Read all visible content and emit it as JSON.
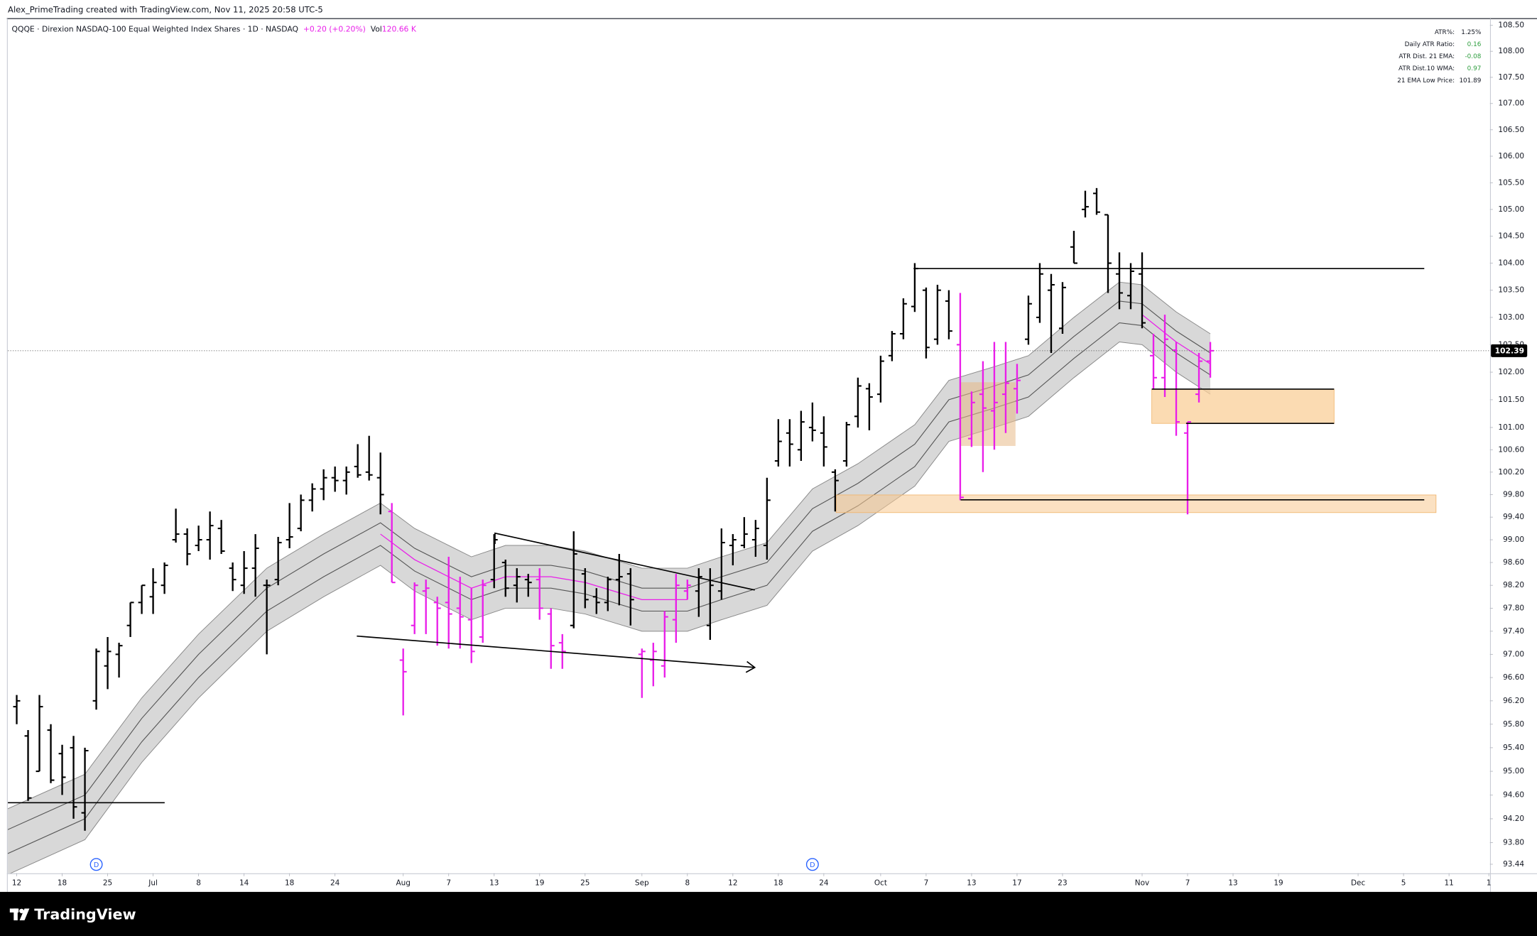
{
  "header": "Alex_PrimeTrading created with TradingView.com, Nov 11, 2025 20:58 UTC-5",
  "legend": {
    "symbol": "QQQE · Direxion NASDAQ-100 Equal Weighted Index Shares · 1D · NASDAQ",
    "change": "+0.20 (+0.20%)",
    "volume_label": "Vol",
    "volume": "120.66 K"
  },
  "stats": {
    "rows": [
      [
        "ATR%:",
        "1.25%"
      ],
      [
        "Daily ATR Ratio:",
        "0.16"
      ],
      [
        "ATR Dist. 21 EMA:",
        "-0.08"
      ],
      [
        "ATR Dist.10 WMA:",
        "0.97"
      ],
      [
        "21 EMA Low Price:",
        "101.89"
      ]
    ],
    "value_colors": [
      "#131722",
      "#2e9e3e",
      "#2e9e3e",
      "#2e9e3e",
      "#131722"
    ]
  },
  "footer": "TradingView",
  "chart_data": {
    "type": "ohlc",
    "log_scale": true,
    "grid": false,
    "open": [
      96.1,
      95.6,
      95.0,
      95.7,
      95.3,
      95.4,
      94.3,
      96.2,
      96.8,
      97.0,
      97.5,
      97.9,
      98.0,
      98.2,
      99.0,
      99.1,
      98.9,
      99.0,
      99.2,
      98.5,
      98.2,
      98.5,
      98.2,
      98.3,
      99.0,
      99.2,
      99.7,
      99.9,
      100.1,
      100.05,
      100.3,
      100.2,
      100.1,
      99.5,
      96.9,
      97.5,
      98.1,
      97.9,
      97.9,
      97.8,
      97.6,
      97.3,
      98.3,
      98.6,
      98.2,
      98.3,
      98.3,
      97.7,
      97.2,
      97.5,
      98.4,
      98.0,
      97.9,
      98.3,
      98.4,
      97.0,
      96.9,
      96.8,
      97.6,
      98.1,
      98.1,
      97.5,
      98.1,
      98.9,
      98.9,
      99.0,
      98.9,
      100.4,
      100.9,
      100.6,
      101.0,
      100.9,
      100.2,
      100.4,
      101.2,
      101.7,
      101.6,
      102.3,
      102.7,
      103.2,
      103.5,
      102.6,
      103.3,
      102.5,
      100.8,
      101.6,
      101.3,
      101.6,
      101.7,
      102.6,
      103.0,
      103.5,
      102.8,
      104.3,
      105.0,
      105.3,
      104.9,
      103.8,
      103.4,
      103.8,
      102.3,
      101.9,
      102.4,
      100.9,
      101.6,
      102.2
    ],
    "high": [
      96.3,
      95.7,
      96.3,
      95.8,
      95.45,
      95.6,
      95.4,
      97.1,
      97.3,
      97.2,
      97.9,
      98.2,
      98.5,
      98.6,
      99.55,
      99.2,
      99.25,
      99.5,
      99.35,
      98.6,
      98.8,
      99.1,
      98.3,
      99.05,
      99.65,
      99.8,
      100.0,
      100.25,
      100.3,
      100.3,
      100.7,
      100.85,
      100.55,
      99.65,
      97.1,
      98.25,
      98.3,
      98.0,
      98.7,
      98.35,
      98.15,
      98.3,
      99.1,
      98.65,
      98.5,
      98.4,
      98.5,
      97.8,
      97.35,
      99.15,
      98.5,
      98.15,
      98.35,
      98.75,
      98.5,
      97.1,
      97.2,
      97.75,
      98.4,
      98.3,
      98.5,
      98.5,
      99.2,
      99.1,
      99.4,
      99.35,
      100.1,
      101.15,
      101.15,
      101.3,
      101.45,
      101.2,
      100.25,
      101.1,
      101.9,
      101.8,
      102.3,
      102.75,
      103.35,
      104.0,
      103.55,
      103.6,
      103.5,
      103.45,
      101.65,
      102.2,
      102.55,
      102.55,
      102.15,
      103.4,
      104.0,
      103.8,
      103.65,
      104.6,
      105.35,
      105.4,
      104.9,
      104.2,
      104.0,
      104.2,
      102.7,
      103.05,
      102.55,
      101.1,
      102.35,
      102.55
    ],
    "low": [
      95.8,
      94.5,
      95.0,
      94.8,
      94.6,
      94.2,
      94.0,
      96.05,
      96.4,
      96.6,
      97.3,
      97.7,
      97.7,
      98.05,
      98.95,
      98.55,
      98.8,
      98.65,
      98.75,
      98.1,
      98.05,
      98.0,
      97.0,
      98.2,
      98.85,
      99.15,
      99.5,
      99.7,
      99.85,
      99.8,
      100.1,
      100.05,
      99.45,
      98.25,
      95.95,
      97.35,
      97.35,
      97.15,
      97.1,
      97.1,
      96.85,
      97.2,
      98.15,
      98.0,
      97.9,
      98.0,
      97.6,
      96.75,
      96.75,
      97.45,
      97.8,
      97.7,
      97.75,
      97.85,
      97.5,
      96.25,
      96.45,
      96.6,
      97.2,
      97.95,
      97.65,
      97.25,
      97.95,
      98.55,
      98.85,
      98.7,
      98.65,
      100.3,
      100.3,
      100.4,
      100.75,
      100.3,
      99.5,
      100.3,
      101.0,
      100.95,
      101.45,
      102.2,
      102.6,
      103.1,
      102.25,
      102.5,
      102.6,
      99.7,
      100.65,
      100.2,
      100.6,
      100.9,
      101.25,
      102.5,
      102.9,
      102.35,
      102.7,
      104.0,
      104.85,
      104.9,
      103.45,
      103.15,
      103.15,
      102.8,
      101.7,
      101.55,
      100.85,
      99.45,
      101.45,
      101.9
    ],
    "close": [
      96.2,
      94.55,
      96.1,
      94.85,
      94.9,
      94.4,
      95.35,
      97.05,
      97.05,
      97.15,
      97.9,
      98.2,
      98.25,
      98.55,
      99.1,
      98.75,
      99.0,
      99.25,
      98.8,
      98.3,
      98.5,
      98.85,
      98.2,
      98.95,
      99.05,
      99.7,
      99.9,
      100.1,
      100.05,
      100.2,
      100.15,
      100.15,
      99.8,
      98.25,
      96.7,
      98.2,
      98.15,
      97.8,
      97.7,
      97.65,
      97.05,
      98.2,
      99.0,
      98.15,
      98.35,
      98.25,
      97.8,
      97.15,
      97.05,
      98.75,
      97.95,
      97.9,
      98.3,
      98.35,
      97.95,
      97.05,
      97.05,
      97.65,
      98.2,
      98.2,
      98.35,
      98.2,
      98.95,
      99.0,
      99.1,
      99.2,
      99.7,
      100.75,
      100.7,
      101.1,
      100.95,
      100.65,
      100.05,
      101.05,
      101.75,
      101.55,
      102.2,
      102.7,
      103.25,
      103.9,
      102.45,
      103.5,
      102.75,
      99.75,
      101.45,
      101.35,
      101.45,
      101.8,
      101.85,
      103.25,
      103.8,
      103.6,
      103.55,
      104.0,
      105.05,
      104.95,
      104.0,
      103.45,
      103.85,
      102.9,
      101.9,
      102.6,
      101.1,
      101.1,
      102.2,
      102.39
    ],
    "bar_colors": [
      "#000000",
      "#000000",
      "#000000",
      "#000000",
      "#000000",
      "#000000",
      "#000000",
      "#000000",
      "#000000",
      "#000000",
      "#000000",
      "#000000",
      "#000000",
      "#000000",
      "#000000",
      "#000000",
      "#000000",
      "#000000",
      "#000000",
      "#000000",
      "#000000",
      "#000000",
      "#000000",
      "#000000",
      "#000000",
      "#000000",
      "#000000",
      "#000000",
      "#000000",
      "#000000",
      "#000000",
      "#000000",
      "#000000",
      "#e91ee9",
      "#e91ee9",
      "#e91ee9",
      "#e91ee9",
      "#e91ee9",
      "#e91ee9",
      "#e91ee9",
      "#e91ee9",
      "#e91ee9",
      "#000000",
      "#000000",
      "#000000",
      "#000000",
      "#e91ee9",
      "#e91ee9",
      "#e91ee9",
      "#000000",
      "#000000",
      "#000000",
      "#000000",
      "#000000",
      "#000000",
      "#e91ee9",
      "#e91ee9",
      "#e91ee9",
      "#e91ee9",
      "#e91ee9",
      "#000000",
      "#000000",
      "#000000",
      "#000000",
      "#000000",
      "#000000",
      "#000000",
      "#000000",
      "#000000",
      "#000000",
      "#000000",
      "#000000",
      "#000000",
      "#000000",
      "#000000",
      "#000000",
      "#000000",
      "#000000",
      "#000000",
      "#000000",
      "#000000",
      "#000000",
      "#000000",
      "#e91ee9",
      "#e91ee9",
      "#e91ee9",
      "#e91ee9",
      "#e91ee9",
      "#e91ee9",
      "#000000",
      "#000000",
      "#000000",
      "#000000",
      "#000000",
      "#000000",
      "#000000",
      "#000000",
      "#000000",
      "#000000",
      "#000000",
      "#e91ee9",
      "#e91ee9",
      "#e91ee9",
      "#e91ee9",
      "#e91ee9",
      "#e91ee9"
    ],
    "indicator": {
      "band_color": "#d4d4d4",
      "edge_color": "#8a8a8a",
      "inner_color": "#555555",
      "ema_color": "#e91ee9",
      "x": [
        -1,
        6,
        11,
        16,
        22,
        27,
        32,
        35,
        40,
        43,
        47,
        50,
        55,
        59,
        62,
        66,
        70,
        74,
        79,
        82,
        86,
        89,
        93,
        97,
        99,
        102,
        105
      ],
      "upper": [
        94.35,
        94.95,
        96.25,
        97.35,
        98.5,
        99.1,
        99.65,
        99.2,
        98.7,
        98.9,
        98.9,
        98.8,
        98.5,
        98.5,
        98.7,
        98.95,
        99.9,
        100.35,
        101.05,
        101.85,
        102.1,
        102.3,
        103.0,
        103.65,
        103.6,
        103.1,
        102.7
      ],
      "lower": [
        93.25,
        93.85,
        95.15,
        96.25,
        97.4,
        98.0,
        98.55,
        98.1,
        97.6,
        97.8,
        97.8,
        97.7,
        97.4,
        97.4,
        97.6,
        97.85,
        98.8,
        99.25,
        99.95,
        100.75,
        101.0,
        101.2,
        101.9,
        102.55,
        102.5,
        102.0,
        101.6
      ],
      "inner_upper": [
        94.0,
        94.6,
        95.9,
        97.0,
        98.15,
        98.75,
        99.3,
        98.85,
        98.35,
        98.55,
        98.55,
        98.45,
        98.15,
        98.15,
        98.35,
        98.6,
        99.55,
        100.0,
        100.7,
        101.5,
        101.75,
        101.95,
        102.65,
        103.3,
        103.25,
        102.75,
        102.35
      ],
      "inner_lower": [
        93.6,
        94.2,
        95.5,
        96.6,
        97.75,
        98.35,
        98.9,
        98.45,
        97.95,
        98.15,
        98.15,
        98.05,
        97.75,
        97.75,
        97.95,
        98.2,
        99.15,
        99.6,
        100.3,
        101.1,
        101.35,
        101.55,
        102.25,
        102.9,
        102.85,
        102.35,
        101.95
      ],
      "ema": [
        null,
        null,
        null,
        null,
        null,
        null,
        99.1,
        98.65,
        98.15,
        98.35,
        98.35,
        98.25,
        97.95,
        97.95,
        null,
        null,
        null,
        null,
        null,
        null,
        null,
        null,
        null,
        null,
        103.05,
        102.55,
        102.15
      ]
    },
    "last_price": 102.39,
    "events": [
      {
        "x": 7,
        "label": "D"
      },
      {
        "x": 70,
        "label": "D"
      }
    ],
    "ylim": [
      93.29,
      108.63
    ],
    "yticks": [
      {
        "value": 108.5,
        "label": "108.50"
      },
      {
        "value": 108,
        "label": "108.00"
      },
      {
        "value": 107.5,
        "label": "107.50"
      },
      {
        "value": 107,
        "label": "107.00"
      },
      {
        "value": 106.5,
        "label": "106.50"
      },
      {
        "value": 106,
        "label": "106.00"
      },
      {
        "value": 105.5,
        "label": "105.50"
      },
      {
        "value": 105,
        "label": "105.00"
      },
      {
        "value": 104.5,
        "label": "104.50"
      },
      {
        "value": 104,
        "label": "104.00"
      },
      {
        "value": 103.5,
        "label": "103.50"
      },
      {
        "value": 103,
        "label": "103.00"
      },
      {
        "value": 102.5,
        "label": "102.50"
      },
      {
        "value": 102,
        "label": "102.00"
      },
      {
        "value": 101.5,
        "label": "101.50"
      },
      {
        "value": 101,
        "label": "101.00"
      },
      {
        "value": 100.6,
        "label": "100.60"
      },
      {
        "value": 100.2,
        "label": "100.20"
      },
      {
        "value": 99.8,
        "label": "99.80"
      },
      {
        "value": 99.4,
        "label": "99.40"
      },
      {
        "value": 99,
        "label": "99.00"
      },
      {
        "value": 98.6,
        "label": "98.60"
      },
      {
        "value": 98.2,
        "label": "98.20"
      },
      {
        "value": 97.8,
        "label": "97.80"
      },
      {
        "value": 97.4,
        "label": "97.40"
      },
      {
        "value": 97,
        "label": "97.00"
      },
      {
        "value": 96.6,
        "label": "96.60"
      },
      {
        "value": 96.2,
        "label": "96.20"
      },
      {
        "value": 95.8,
        "label": "95.80"
      },
      {
        "value": 95.4,
        "label": "95.40"
      },
      {
        "value": 95,
        "label": "95.00"
      },
      {
        "value": 94.6,
        "label": "94.60"
      },
      {
        "value": 94.2,
        "label": "94.20"
      },
      {
        "value": 93.8,
        "label": "93.80"
      },
      {
        "value": 93.44,
        "label": "93.44"
      }
    ],
    "xlim": [
      -0.78,
      129.6
    ],
    "xticks": [
      {
        "value": 0,
        "label": "12"
      },
      {
        "value": 4,
        "label": "18"
      },
      {
        "value": 8,
        "label": "25"
      },
      {
        "value": 12,
        "label": "Jul"
      },
      {
        "value": 16,
        "label": "8"
      },
      {
        "value": 20,
        "label": "14"
      },
      {
        "value": 24,
        "label": "18"
      },
      {
        "value": 28,
        "label": "24"
      },
      {
        "value": 34,
        "label": "Aug"
      },
      {
        "value": 38,
        "label": "7"
      },
      {
        "value": 42,
        "label": "13"
      },
      {
        "value": 46,
        "label": "19"
      },
      {
        "value": 50,
        "label": "25"
      },
      {
        "value": 55,
        "label": "Sep"
      },
      {
        "value": 59,
        "label": "8"
      },
      {
        "value": 63,
        "label": "12"
      },
      {
        "value": 67,
        "label": "18"
      },
      {
        "value": 71,
        "label": "24"
      },
      {
        "value": 76,
        "label": "Oct"
      },
      {
        "value": 80,
        "label": "7"
      },
      {
        "value": 84,
        "label": "13"
      },
      {
        "value": 88,
        "label": "17"
      },
      {
        "value": 92,
        "label": "23"
      },
      {
        "value": 99,
        "label": "Nov"
      },
      {
        "value": 103,
        "label": "7"
      },
      {
        "value": 107,
        "label": "13"
      },
      {
        "value": 111,
        "label": "19"
      },
      {
        "value": 118,
        "label": "Dec"
      },
      {
        "value": 122,
        "label": "5"
      },
      {
        "value": 126,
        "label": "11"
      },
      {
        "value": 129.5,
        "label": "1"
      }
    ]
  }
}
